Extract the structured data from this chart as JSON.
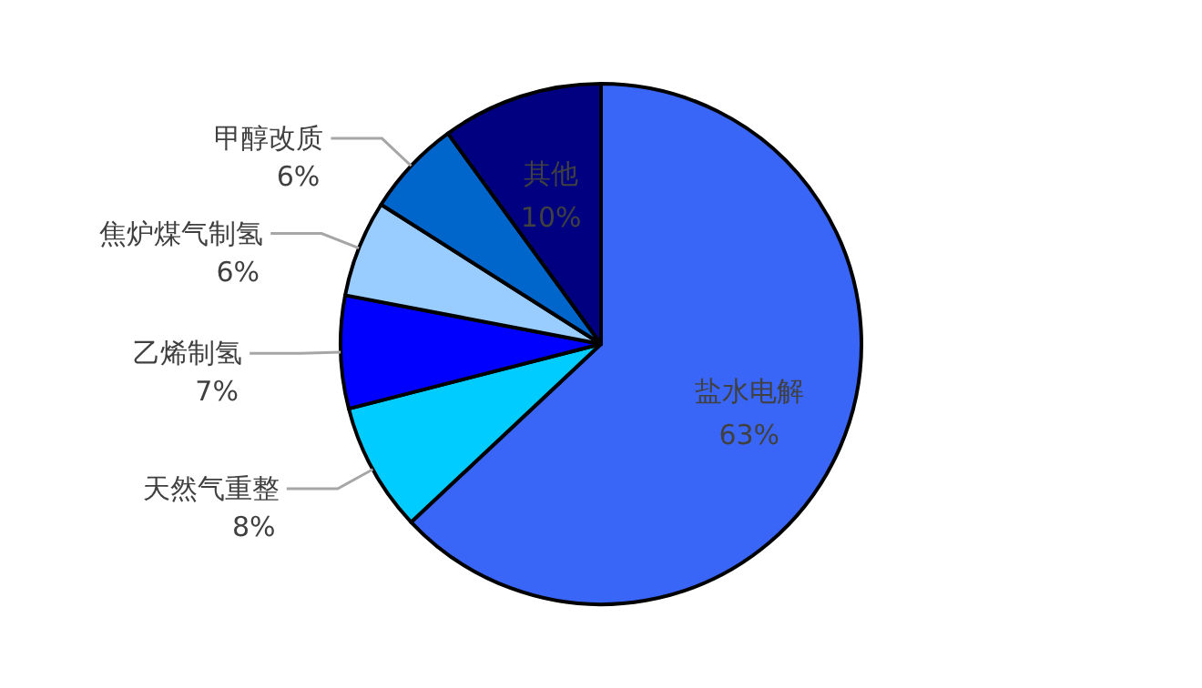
{
  "chart_data": {
    "type": "pie",
    "categories": [
      "盐水电解",
      "天然气重整",
      "乙烯制氢",
      "焦炉煤气制氢",
      "甲醇改质",
      "其他"
    ],
    "values": [
      63,
      8,
      7,
      6,
      6,
      10
    ],
    "colors": [
      "#3a66f7",
      "#00ccff",
      "#0000ff",
      "#99ccff",
      "#0066cc",
      "#000080"
    ],
    "value_labels": [
      "63%",
      "8%",
      "7%",
      "6%",
      "6%",
      "10%"
    ]
  }
}
